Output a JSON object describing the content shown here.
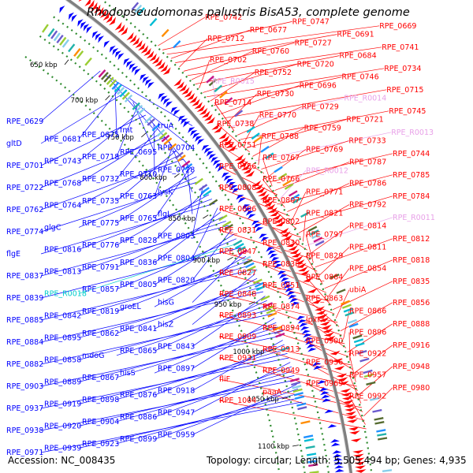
{
  "title": "Rhodopseudomonas palustris BisA53, complete genome",
  "footer": {
    "accession": "Accession: NC_008435",
    "summary": "Topology: circular; Length: 5,505,494 bp; Genes: 4,935"
  },
  "colors": {
    "forward": "#ff0000",
    "reverse": "#0000ff",
    "rna": "#e8a0e8",
    "trna": "#00cccc",
    "backbone": "#808080",
    "dotted": "#2e8b2e"
  },
  "kbp_ticks": [
    "650 kbp",
    "700 kbp",
    "750 kbp",
    "800 kbp",
    "850 kbp",
    "900 kbp",
    "950 kbp",
    "1000 kbp",
    "1050 kbp",
    "1100 kbp"
  ],
  "right_labels": [
    {
      "text": "RPE_0742",
      "type": "f"
    },
    {
      "text": "RPE_0747",
      "type": "f"
    },
    {
      "text": "RPE_0669",
      "type": "f"
    },
    {
      "text": "RPE_0677",
      "type": "f"
    },
    {
      "text": "RPE_0691",
      "type": "f"
    },
    {
      "text": "RPE_0712",
      "type": "f"
    },
    {
      "text": "RPE_0727",
      "type": "f"
    },
    {
      "text": "RPE_0741",
      "type": "f"
    },
    {
      "text": "RPE_0760",
      "type": "f"
    },
    {
      "text": "RPE_0684",
      "type": "f"
    },
    {
      "text": "RPE_0702",
      "type": "f"
    },
    {
      "text": "RPE_0720",
      "type": "f"
    },
    {
      "text": "RPE_0734",
      "type": "f"
    },
    {
      "text": "RPE_0752",
      "type": "f"
    },
    {
      "text": "RPE_0746",
      "type": "f"
    },
    {
      "text": "RPE_R0015",
      "type": "r"
    },
    {
      "text": "RPE_0696",
      "type": "f"
    },
    {
      "text": "RPE_0715",
      "type": "f"
    },
    {
      "text": "RPE_0730",
      "type": "f"
    },
    {
      "text": "RPE_R0014",
      "type": "r"
    },
    {
      "text": "RPE_0714",
      "type": "f"
    },
    {
      "text": "RPE_0729",
      "type": "f"
    },
    {
      "text": "RPE_0745",
      "type": "f"
    },
    {
      "text": "RPE_0770",
      "type": "f"
    },
    {
      "text": "RPE_0721",
      "type": "f"
    },
    {
      "text": "RPE_0738",
      "type": "f"
    },
    {
      "text": "RPE_0759",
      "type": "f"
    },
    {
      "text": "RPE_R0013",
      "type": "r"
    },
    {
      "text": "RPE_0788",
      "type": "f"
    },
    {
      "text": "RPE_0733",
      "type": "f"
    },
    {
      "text": "RPE_0751",
      "type": "f"
    },
    {
      "text": "RPE_0769",
      "type": "f"
    },
    {
      "text": "RPE_0744",
      "type": "f"
    },
    {
      "text": "RPE_0767",
      "type": "f"
    },
    {
      "text": "RPE_0787",
      "type": "f"
    },
    {
      "text": "RPE_0756",
      "type": "f"
    },
    {
      "text": "RPE_R0012",
      "type": "r"
    },
    {
      "text": "RPE_0785",
      "type": "f"
    },
    {
      "text": "RPE_0766",
      "type": "f"
    },
    {
      "text": "RPE_0786",
      "type": "f"
    },
    {
      "text": "RPE_0808",
      "type": "f"
    },
    {
      "text": "RPE_0771",
      "type": "f"
    },
    {
      "text": "RPE_0784",
      "type": "f"
    },
    {
      "text": "RPE_0807",
      "type": "f"
    },
    {
      "text": "RPE_0792",
      "type": "f"
    },
    {
      "text": "RPE_0806",
      "type": "f"
    },
    {
      "text": "RPE_0821",
      "type": "f"
    },
    {
      "text": "RPE_R0011",
      "type": "r"
    },
    {
      "text": "RPE_0802",
      "type": "f"
    },
    {
      "text": "RPE_0814",
      "type": "f"
    },
    {
      "text": "RPE_0831",
      "type": "f"
    },
    {
      "text": "RPE_0797",
      "type": "f"
    },
    {
      "text": "RPE_0812",
      "type": "f"
    },
    {
      "text": "RPE_0830",
      "type": "f"
    },
    {
      "text": "RPE_0811",
      "type": "f"
    },
    {
      "text": "RPE_0847",
      "type": "f"
    },
    {
      "text": "RPE_0829",
      "type": "f"
    },
    {
      "text": "RPE_0818",
      "type": "f"
    },
    {
      "text": "RPE_0838",
      "type": "f"
    },
    {
      "text": "RPE_0854",
      "type": "f"
    },
    {
      "text": "RPE_0827",
      "type": "f"
    },
    {
      "text": "RPE_0864",
      "type": "f"
    },
    {
      "text": "RPE_0835",
      "type": "f"
    },
    {
      "text": "RPE_0851",
      "type": "f"
    },
    {
      "text": "ubiA",
      "type": "f"
    },
    {
      "text": "RPE_0848",
      "type": "f"
    },
    {
      "text": "RPE_0863",
      "type": "f"
    },
    {
      "text": "RPE_0856",
      "type": "f"
    },
    {
      "text": "RPE_0874",
      "type": "f"
    },
    {
      "text": "RPE_0866",
      "type": "f"
    },
    {
      "text": "RPE_0893",
      "type": "f"
    },
    {
      "text": "lpxK",
      "type": "f"
    },
    {
      "text": "RPE_0888",
      "type": "f"
    },
    {
      "text": "RPE_0894",
      "type": "f"
    },
    {
      "text": "RPE_0896",
      "type": "f"
    },
    {
      "text": "RPE_0909",
      "type": "f"
    },
    {
      "text": "RPE_0900",
      "type": "f"
    },
    {
      "text": "RPE_0916",
      "type": "f"
    },
    {
      "text": "RPE_0913",
      "type": "f"
    },
    {
      "text": "RPE_0922",
      "type": "f"
    },
    {
      "text": "RPE_0931",
      "type": "f"
    },
    {
      "text": "RPE_0936",
      "type": "f"
    },
    {
      "text": "RPE_0948",
      "type": "f"
    },
    {
      "text": "RPE_0949",
      "type": "f"
    },
    {
      "text": "RPE_0957",
      "type": "f"
    },
    {
      "text": "fliF",
      "type": "f"
    },
    {
      "text": "RPE_0969",
      "type": "f"
    },
    {
      "text": "RPE_0980",
      "type": "f"
    },
    {
      "text": "paaA",
      "type": "f"
    },
    {
      "text": "RPE_0992",
      "type": "f"
    },
    {
      "text": "RPE_1004",
      "type": "f"
    }
  ],
  "left_labels": [
    {
      "text": "RPE_0629",
      "type": "b"
    },
    {
      "text": "truA",
      "type": "b"
    },
    {
      "text": "fmt",
      "type": "b"
    },
    {
      "text": "RPE_0675",
      "type": "b"
    },
    {
      "text": "RPE_0681",
      "type": "b"
    },
    {
      "text": "gltD",
      "type": "b"
    },
    {
      "text": "RPE_0704",
      "type": "b"
    },
    {
      "text": "RPE_0695",
      "type": "b"
    },
    {
      "text": "RPE_0718",
      "type": "b"
    },
    {
      "text": "RPE_0743",
      "type": "b"
    },
    {
      "text": "RPE_0701",
      "type": "b"
    },
    {
      "text": "RPE_0728",
      "type": "b"
    },
    {
      "text": "RPE_0710",
      "type": "b"
    },
    {
      "text": "RPE_0732",
      "type": "b"
    },
    {
      "text": "RPE_0768",
      "type": "b"
    },
    {
      "text": "RPE_0722",
      "type": "b"
    },
    {
      "text": "lysK",
      "type": "b"
    },
    {
      "text": "RPE_0763",
      "type": "b"
    },
    {
      "text": "RPE_0735",
      "type": "b"
    },
    {
      "text": "RPE_0764",
      "type": "b"
    },
    {
      "text": "RPE_0762",
      "type": "b"
    },
    {
      "text": "flgL",
      "type": "b"
    },
    {
      "text": "RPE_0765",
      "type": "b"
    },
    {
      "text": "RPE_0775",
      "type": "b"
    },
    {
      "text": "glgC",
      "type": "b"
    },
    {
      "text": "RPE_0774",
      "type": "b"
    },
    {
      "text": "RPE_0803",
      "type": "b"
    },
    {
      "text": "RPE_0828",
      "type": "b"
    },
    {
      "text": "RPE_0776",
      "type": "b"
    },
    {
      "text": "RPE_0816",
      "type": "b"
    },
    {
      "text": "flgE",
      "type": "b"
    },
    {
      "text": "RPE_0804",
      "type": "b"
    },
    {
      "text": "RPE_0836",
      "type": "b"
    },
    {
      "text": "RPE_0791",
      "type": "b"
    },
    {
      "text": "RPE_0813",
      "type": "b"
    },
    {
      "text": "RPE_0837",
      "type": "b"
    },
    {
      "text": "RPE_0820",
      "type": "b"
    },
    {
      "text": "RPE_0805",
      "type": "b"
    },
    {
      "text": "RPE_0857",
      "type": "b"
    },
    {
      "text": "RPE_R0018",
      "type": "t"
    },
    {
      "text": "RPE_0839",
      "type": "b"
    },
    {
      "text": "hisG",
      "type": "b"
    },
    {
      "text": "groEL",
      "type": "b"
    },
    {
      "text": "RPE_0819",
      "type": "b"
    },
    {
      "text": "RPE_0842",
      "type": "b"
    },
    {
      "text": "RPE_0885",
      "type": "b"
    },
    {
      "text": "hisZ",
      "type": "b"
    },
    {
      "text": "RPE_0841",
      "type": "b"
    },
    {
      "text": "RPE_0862",
      "type": "b"
    },
    {
      "text": "RPE_0895",
      "type": "b"
    },
    {
      "text": "RPE_0884",
      "type": "b"
    },
    {
      "text": "RPE_0843",
      "type": "b"
    },
    {
      "text": "RPE_0865",
      "type": "b"
    },
    {
      "text": "mdoG",
      "type": "b"
    },
    {
      "text": "RPE_0858",
      "type": "b"
    },
    {
      "text": "RPE_0882",
      "type": "b"
    },
    {
      "text": "RPE_0897",
      "type": "b"
    },
    {
      "text": "hisS",
      "type": "b"
    },
    {
      "text": "RPE_0867",
      "type": "b"
    },
    {
      "text": "RPE_0889",
      "type": "b"
    },
    {
      "text": "RPE_0903",
      "type": "b"
    },
    {
      "text": "RPE_0918",
      "type": "b"
    },
    {
      "text": "RPE_0876",
      "type": "b"
    },
    {
      "text": "RPE_0898",
      "type": "b"
    },
    {
      "text": "RPE_0919",
      "type": "b"
    },
    {
      "text": "RPE_0937",
      "type": "b"
    },
    {
      "text": "RPE_0947",
      "type": "b"
    },
    {
      "text": "RPE_0886",
      "type": "b"
    },
    {
      "text": "RPE_0904",
      "type": "b"
    },
    {
      "text": "RPE_0920",
      "type": "b"
    },
    {
      "text": "RPE_0938",
      "type": "b"
    },
    {
      "text": "RPE_0959",
      "type": "b"
    },
    {
      "text": "RPE_0899",
      "type": "b"
    },
    {
      "text": "RPE_0923",
      "type": "b"
    },
    {
      "text": "RPE_0939",
      "type": "b"
    },
    {
      "text": "RPE_0971",
      "type": "b"
    }
  ]
}
